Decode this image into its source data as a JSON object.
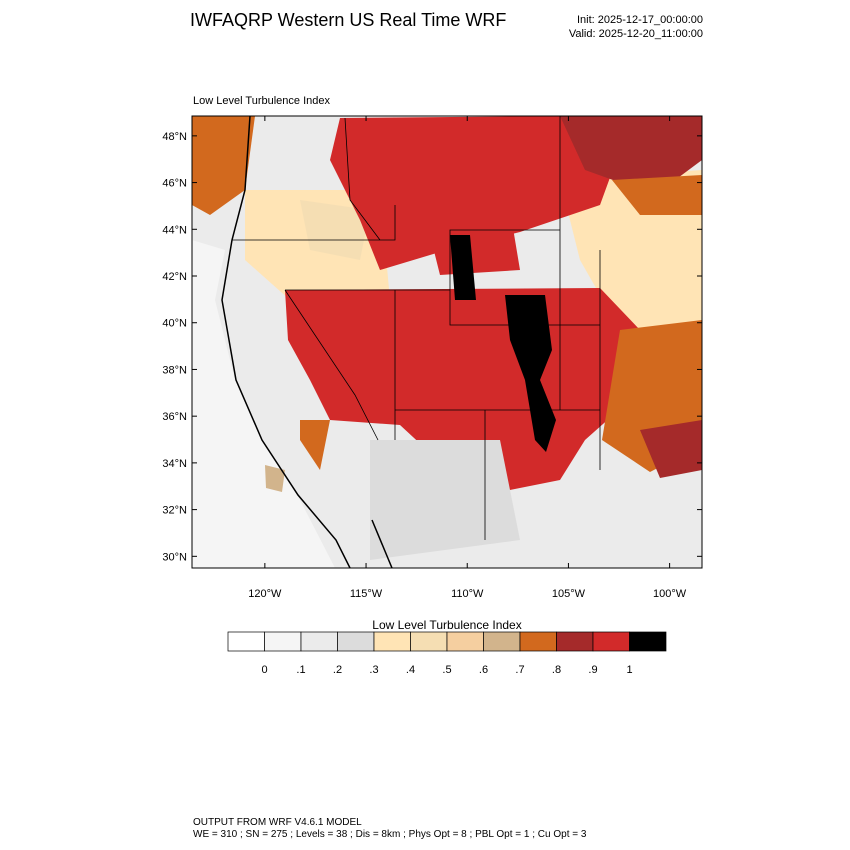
{
  "header": {
    "title": "IWFAQRP Western US Real Time WRF",
    "init": "Init: 2025-12-17_00:00:00",
    "valid": "Valid: 2025-12-20_11:00:00"
  },
  "map": {
    "title": "Low Level Turbulence Index",
    "lonlim": [
      -123.6,
      -98.4
    ],
    "latlim": [
      29.5,
      48.85
    ],
    "lat_ticks": [
      {
        "value": 48,
        "label": "48°N"
      },
      {
        "value": 46,
        "label": "46°N"
      },
      {
        "value": 44,
        "label": "44°N"
      },
      {
        "value": 42,
        "label": "42°N"
      },
      {
        "value": 40,
        "label": "40°N"
      },
      {
        "value": 38,
        "label": "38°N"
      },
      {
        "value": 36,
        "label": "36°N"
      },
      {
        "value": 34,
        "label": "34°N"
      },
      {
        "value": 32,
        "label": "32°N"
      },
      {
        "value": 30,
        "label": "30°N"
      }
    ],
    "lon_ticks": [
      {
        "value": -120,
        "label": "120°W"
      },
      {
        "value": -115,
        "label": "115°W"
      },
      {
        "value": -110,
        "label": "110°W"
      },
      {
        "value": -105,
        "label": "105°W"
      },
      {
        "value": -100,
        "label": "100°W"
      }
    ]
  },
  "colorbar": {
    "title": "Low Level Turbulence Index",
    "colors": [
      "#ffffff",
      "#f5f5f5",
      "#ebebeb",
      "#dcdcdc",
      "#ffe4b5",
      "#f5deb3",
      "#f5cfa0",
      "#d2b48c",
      "#d2691e",
      "#a52a2a",
      "#d22a2a",
      "#000000"
    ],
    "ticks": [
      0,
      {
        "value": 0.1,
        "label": ".1"
      },
      {
        "value": 0.2,
        "label": ".2"
      },
      {
        "value": 0.3,
        "label": ".3"
      },
      {
        "value": 0.4,
        "label": ".4"
      },
      {
        "value": 0.5,
        "label": ".5"
      },
      {
        "value": 0.6,
        "label": ".6"
      },
      {
        "value": 0.7,
        "label": ".7"
      },
      {
        "value": 0.8,
        "label": ".8"
      },
      {
        "value": 0.9,
        "label": ".9"
      },
      1
    ]
  },
  "footer": {
    "line1": "OUTPUT FROM WRF V4.6.1 MODEL",
    "line2": "WE = 310 ; SN = 275 ; Levels = 38 ; Dis = 8km ; Phys Opt = 8 ; PBL Opt = 1 ; Cu Opt = 3"
  }
}
